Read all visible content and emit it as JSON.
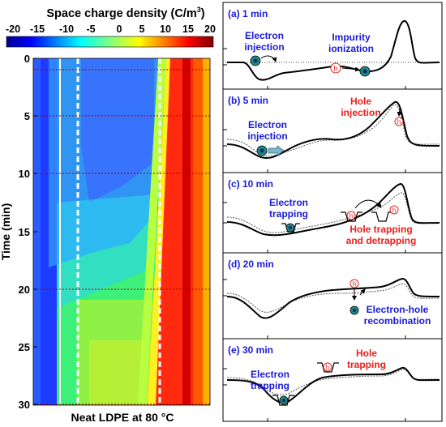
{
  "colorbar": {
    "title": "Space charge density (C/m",
    "title_sup": "3",
    "title_close": ")",
    "ticks": [
      "-20",
      "-15",
      "-10",
      "-5",
      "0",
      "5",
      "10",
      "15",
      "20"
    ],
    "range": [
      -20,
      20
    ],
    "colormap": "jet"
  },
  "heatmap": {
    "ylabel": "Time (min)",
    "xlabel": "Neat LDPE at 80 °C",
    "yticks": [
      "0",
      "5",
      "10",
      "15",
      "20",
      "25",
      "30"
    ],
    "ylim": [
      0,
      30
    ],
    "reference_times_min": [
      1,
      5,
      10,
      20,
      30
    ]
  },
  "panels": [
    {
      "label": "(a) 1 min",
      "annotations": [
        {
          "text": [
            "Electron",
            "injection"
          ],
          "color": "#1a1ad6"
        },
        {
          "text": [
            "Impurity",
            "ionization"
          ],
          "color": "#1a1ad6"
        }
      ]
    },
    {
      "label": "(b) 5 min",
      "annotations": [
        {
          "text": [
            "Electron",
            "injection"
          ],
          "color": "#1a1ad6"
        },
        {
          "text": [
            "Hole",
            "injection"
          ],
          "color": "#e8201a"
        }
      ]
    },
    {
      "label": "(c) 10 min",
      "annotations": [
        {
          "text": [
            "Electron",
            "trapping"
          ],
          "color": "#1a1ad6"
        },
        {
          "text": [
            "Hole trapping",
            "and detrapping"
          ],
          "color": "#e8201a"
        }
      ]
    },
    {
      "label": "(d) 20 min",
      "annotations": [
        {
          "text": [
            "Electron-hole",
            "recombination"
          ],
          "color": "#1a1ad6"
        }
      ]
    },
    {
      "label": "(e) 30 min",
      "annotations": [
        {
          "text": [
            "Electron",
            "trapping"
          ],
          "color": "#1a1ad6"
        },
        {
          "text": [
            "Hole",
            "trapping"
          ],
          "color": "#e8201a"
        }
      ]
    }
  ],
  "hole_symbol": "h",
  "colors": {
    "electron": "#1a1ad6",
    "hole": "#e8201a",
    "panel_label": "#1a1ad6",
    "electron_marker": "#1e8a86"
  }
}
